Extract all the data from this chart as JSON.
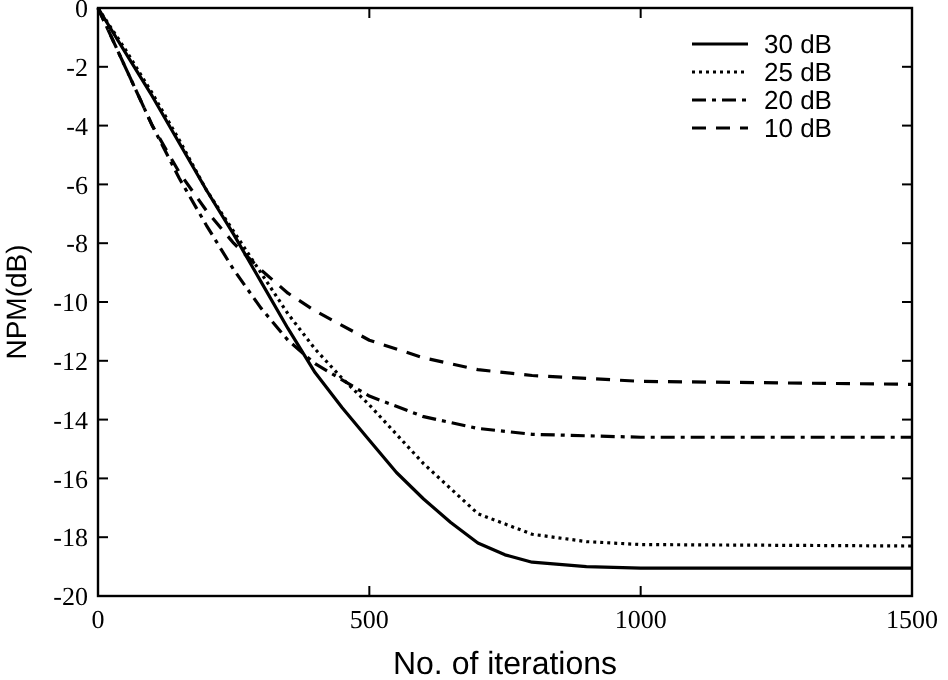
{
  "chart_data": {
    "type": "line",
    "xlabel": "No. of iterations",
    "ylabel": "NPM(dB)",
    "xlim": [
      0,
      1500
    ],
    "ylim": [
      -20,
      0
    ],
    "xticks": [
      0,
      500,
      1000,
      1500
    ],
    "yticks": [
      -20,
      -18,
      -16,
      -14,
      -12,
      -10,
      -8,
      -6,
      -4,
      -2,
      0
    ],
    "grid": false,
    "legend": "top right",
    "marker": "none",
    "series": [
      {
        "name": "30 dB",
        "color": "#000000",
        "line_style": "solid",
        "x": [
          0,
          50,
          100,
          150,
          200,
          250,
          300,
          350,
          400,
          450,
          500,
          550,
          600,
          650,
          700,
          750,
          800,
          900,
          1000,
          1500
        ],
        "values": [
          0,
          -1.5,
          -3.0,
          -4.6,
          -6.2,
          -7.7,
          -9.3,
          -10.9,
          -12.4,
          -13.6,
          -14.7,
          -15.8,
          -16.7,
          -17.5,
          -18.2,
          -18.6,
          -18.85,
          -19.0,
          -19.05,
          -19.05
        ]
      },
      {
        "name": "25 dB",
        "color": "#000000",
        "line_style": "dotted",
        "x": [
          0,
          50,
          100,
          150,
          200,
          250,
          300,
          350,
          400,
          450,
          500,
          600,
          700,
          800,
          900,
          1000,
          1500
        ],
        "values": [
          0,
          -1.4,
          -2.9,
          -4.5,
          -6.2,
          -7.6,
          -9.0,
          -10.4,
          -11.6,
          -12.6,
          -13.5,
          -15.5,
          -17.2,
          -17.9,
          -18.15,
          -18.25,
          -18.3
        ]
      },
      {
        "name": "20 dB",
        "color": "#000000",
        "line_style": "dashdot",
        "x": [
          0,
          25,
          50,
          100,
          150,
          200,
          250,
          300,
          350,
          400,
          500,
          600,
          700,
          800,
          1000,
          1500
        ],
        "values": [
          0,
          -1.0,
          -2.0,
          -4.0,
          -5.8,
          -7.4,
          -8.9,
          -10.2,
          -11.3,
          -12.1,
          -13.2,
          -13.9,
          -14.3,
          -14.5,
          -14.6,
          -14.6
        ]
      },
      {
        "name": "10 dB",
        "color": "#000000",
        "line_style": "dashed",
        "x": [
          0,
          25,
          50,
          100,
          150,
          200,
          250,
          300,
          350,
          400,
          500,
          600,
          700,
          800,
          1000,
          1500
        ],
        "values": [
          0,
          -1.0,
          -2.0,
          -4.0,
          -5.6,
          -6.9,
          -8.0,
          -8.9,
          -9.7,
          -10.3,
          -11.3,
          -11.9,
          -12.3,
          -12.5,
          -12.7,
          -12.8
        ]
      }
    ]
  }
}
